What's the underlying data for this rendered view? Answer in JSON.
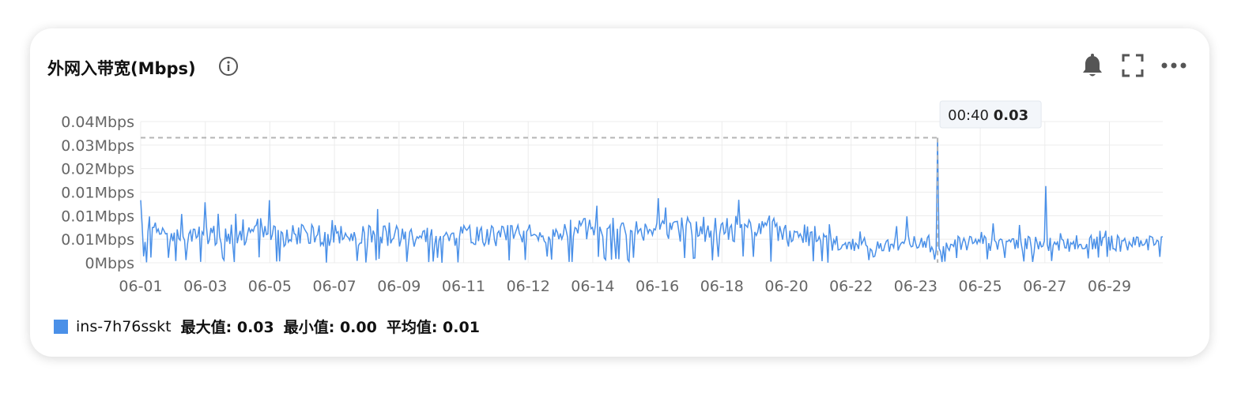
{
  "panel": {
    "title": "外网入带宽(Mbps)",
    "icons": [
      "info-icon",
      "bell-icon",
      "fullscreen-icon",
      "more-icon"
    ]
  },
  "colors": {
    "series": "#4a90e8",
    "grid": "#ececec",
    "crosshair": "#b4b4b4"
  },
  "tooltip": {
    "time": "00:40",
    "value": "0.03",
    "x_index": 545
  },
  "legend": {
    "series_name": "ins-7h76sskt",
    "max_label": "最大值: 0.03",
    "min_label": "最小值: 0.00",
    "avg_label": "平均值: 0.01"
  },
  "chart_data": {
    "type": "line",
    "title": "外网入带宽(Mbps)",
    "xlabel": "",
    "ylabel": "",
    "y_ticks": [
      "0Mbps",
      "0.01Mbps",
      "0.01Mbps",
      "0.01Mbps",
      "0.02Mbps",
      "0.03Mbps",
      "0.04Mbps"
    ],
    "ylim": [
      0,
      0.035
    ],
    "x_ticks": [
      "06-01",
      "06-03",
      "06-05",
      "06-07",
      "06-09",
      "06-11",
      "06-12",
      "06-14",
      "06-16",
      "06-18",
      "06-20",
      "06-22",
      "06-23",
      "06-25",
      "06-27",
      "06-29"
    ],
    "grid": true,
    "legend_position": "bottom-left",
    "series": [
      {
        "name": "ins-7h76sskt",
        "points_count": 700,
        "max": 0.03,
        "min": 0.0,
        "avg": 0.01,
        "highlight": {
          "time": "00:40",
          "value": 0.031
        },
        "notable_peaks": [
          {
            "at": "06-03",
            "value": 0.015
          },
          {
            "at": "06-05",
            "value": 0.0155
          },
          {
            "at": "06-08",
            "value": 0.016
          },
          {
            "at": "06-13",
            "value": 0.0155
          },
          {
            "at": "06-16",
            "value": 0.016
          },
          {
            "at": "06-19",
            "value": 0.0155
          },
          {
            "at": "06-27",
            "value": 0.019
          }
        ]
      }
    ]
  }
}
